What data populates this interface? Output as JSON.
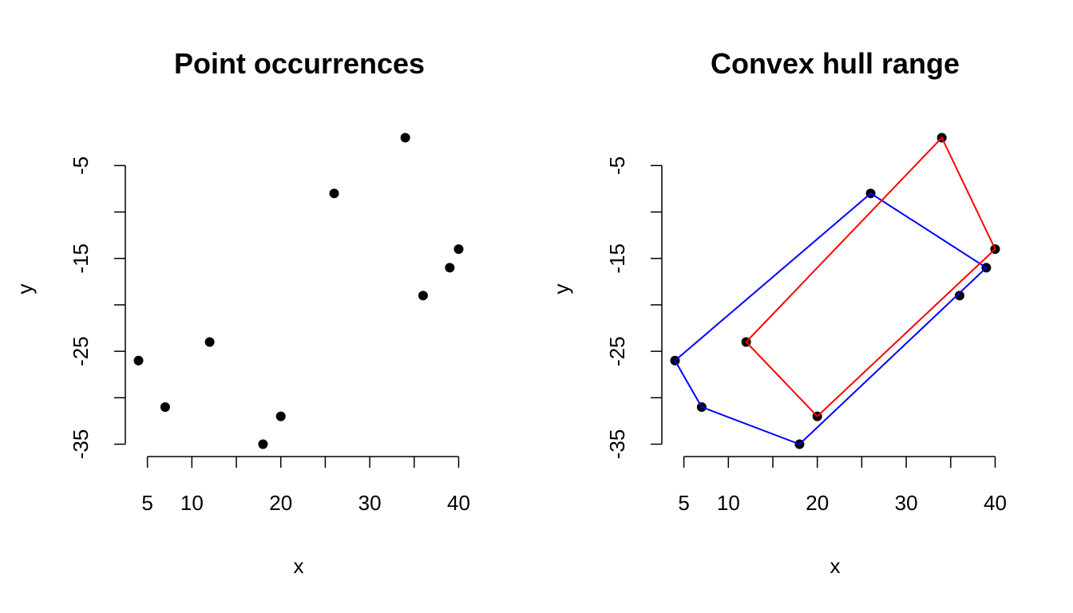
{
  "colors": {
    "hull_blue": "#0000ff",
    "hull_red": "#ff0000",
    "points": "#000000"
  },
  "chart_data": [
    {
      "type": "scatter",
      "title": "Point occurrences",
      "xlabel": "x",
      "ylabel": "y",
      "xticks": [
        5,
        10,
        20,
        30,
        40
      ],
      "xtick_marks": [
        5,
        10,
        15,
        20,
        25,
        30,
        35,
        40
      ],
      "yticks": [
        -5,
        -15,
        -25,
        -35
      ],
      "ytick_marks": [
        -5,
        -10,
        -15,
        -20,
        -25,
        -30,
        -35
      ],
      "xlim": [
        4,
        40
      ],
      "ylim": [
        -35,
        -2
      ],
      "grid": false,
      "points": [
        {
          "x": 4,
          "y": -26
        },
        {
          "x": 7,
          "y": -31
        },
        {
          "x": 12,
          "y": -24
        },
        {
          "x": 18,
          "y": -35
        },
        {
          "x": 20,
          "y": -32
        },
        {
          "x": 26,
          "y": -8
        },
        {
          "x": 34,
          "y": -2
        },
        {
          "x": 36,
          "y": -19
        },
        {
          "x": 39,
          "y": -16
        },
        {
          "x": 40,
          "y": -14
        }
      ]
    },
    {
      "type": "scatter",
      "title": "Convex hull range",
      "xlabel": "x",
      "ylabel": "y",
      "xticks": [
        5,
        10,
        20,
        30,
        40
      ],
      "xtick_marks": [
        5,
        10,
        15,
        20,
        25,
        30,
        35,
        40
      ],
      "yticks": [
        -5,
        -15,
        -25,
        -35
      ],
      "ytick_marks": [
        -5,
        -10,
        -15,
        -20,
        -25,
        -30,
        -35
      ],
      "xlim": [
        4,
        40
      ],
      "ylim": [
        -35,
        -2
      ],
      "grid": false,
      "points": [
        {
          "x": 4,
          "y": -26
        },
        {
          "x": 7,
          "y": -31
        },
        {
          "x": 12,
          "y": -24
        },
        {
          "x": 18,
          "y": -35
        },
        {
          "x": 20,
          "y": -32
        },
        {
          "x": 26,
          "y": -8
        },
        {
          "x": 34,
          "y": -2
        },
        {
          "x": 36,
          "y": -19
        },
        {
          "x": 39,
          "y": -16
        },
        {
          "x": 40,
          "y": -14
        }
      ],
      "series": [
        {
          "color": "#0000ff",
          "polygon": [
            {
              "x": 4,
              "y": -26
            },
            {
              "x": 26,
              "y": -8
            },
            {
              "x": 39,
              "y": -16
            },
            {
              "x": 18,
              "y": -35
            },
            {
              "x": 7,
              "y": -31
            }
          ]
        },
        {
          "color": "#ff0000",
          "polygon": [
            {
              "x": 12,
              "y": -24
            },
            {
              "x": 34,
              "y": -2
            },
            {
              "x": 40,
              "y": -14
            },
            {
              "x": 20,
              "y": -32
            }
          ]
        }
      ]
    }
  ]
}
